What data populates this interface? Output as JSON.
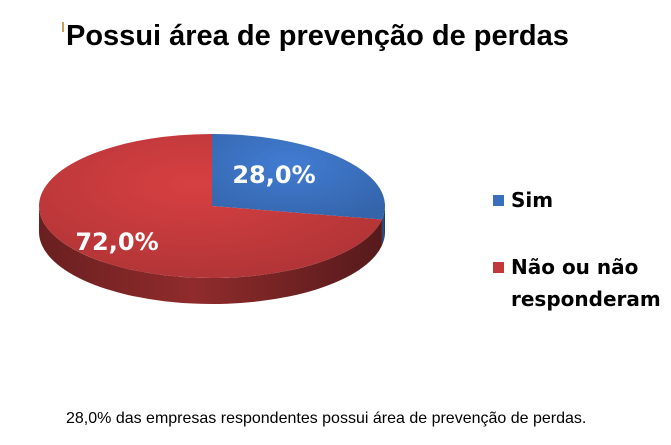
{
  "title": "Possui área de prevenção de perdas",
  "caption": "28,0% das empresas respondentes possui área de prevenção de perdas.",
  "chart_data": {
    "type": "pie",
    "title": "Possui área de prevenção de perdas",
    "categories": [
      "Sim",
      "Não ou não responderam"
    ],
    "values": [
      28.0,
      72.0
    ],
    "data_labels": [
      "28,0%",
      "72,0%"
    ],
    "colors": [
      "#3a6fbc",
      "#c0393b"
    ],
    "legend": {
      "placement": "right",
      "entries": [
        {
          "label_lines": [
            "Sim"
          ],
          "color": "#3a6fbc"
        },
        {
          "label_lines": [
            "Não ou não",
            "responderam"
          ],
          "color": "#c0393b"
        }
      ]
    },
    "style": "3d"
  }
}
